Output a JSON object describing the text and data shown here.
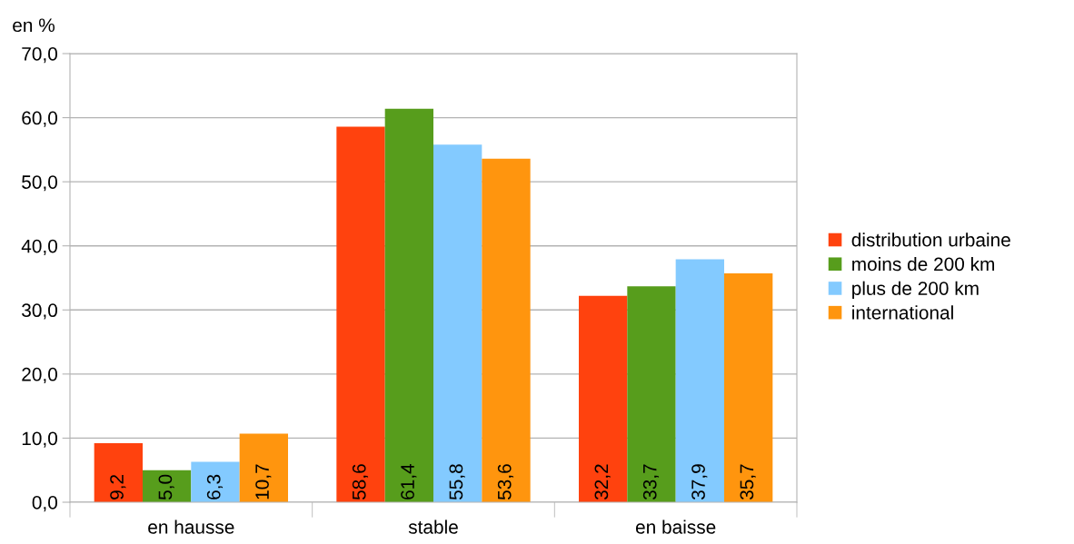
{
  "chart_data": {
    "type": "bar",
    "ylabel": "en %",
    "categories": [
      "en hausse",
      "stable",
      "en baisse"
    ],
    "series": [
      {
        "name": "distribution urbaine",
        "color": "#ff420e",
        "values": [
          9.2,
          58.6,
          32.2
        ],
        "value_labels": [
          "9,2",
          "58,6",
          "32,2"
        ]
      },
      {
        "name": "moins de 200 km",
        "color": "#579d1c",
        "values": [
          5.0,
          61.4,
          33.7
        ],
        "value_labels": [
          "5,0",
          "61,4",
          "33,7"
        ]
      },
      {
        "name": "plus de 200 km",
        "color": "#83caff",
        "values": [
          6.3,
          55.8,
          37.9
        ],
        "value_labels": [
          "6,3",
          "55,8",
          "37,9"
        ]
      },
      {
        "name": "international",
        "color": "#ff950e",
        "values": [
          10.7,
          53.6,
          35.7
        ],
        "value_labels": [
          "10,7",
          "53,6",
          "35,7"
        ]
      }
    ],
    "ylim": [
      0,
      70
    ],
    "yticks": [
      {
        "value": 0,
        "label": "0,0"
      },
      {
        "value": 10,
        "label": "10,0"
      },
      {
        "value": 20,
        "label": "20,0"
      },
      {
        "value": 30,
        "label": "30,0"
      },
      {
        "value": 40,
        "label": "40,0"
      },
      {
        "value": 50,
        "label": "50,0"
      },
      {
        "value": 60,
        "label": "60,0"
      },
      {
        "value": 70,
        "label": "70,0"
      }
    ],
    "grid": "y",
    "legend": "right"
  }
}
